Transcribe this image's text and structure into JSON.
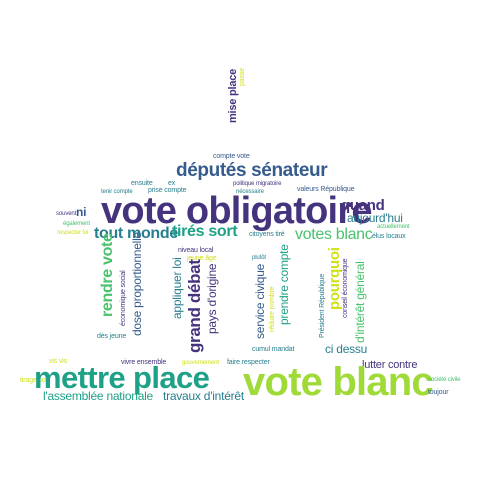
{
  "palette": {
    "dark_purple": "#46337e",
    "slate_blue": "#365c8d",
    "steel_blue": "#277f8e",
    "teal": "#1fa187",
    "green": "#4ac16d",
    "lime": "#a0da39",
    "yellow": "#d0e11c"
  },
  "words": [
    {
      "id": "mise-place",
      "text": "mise place",
      "weight": 4,
      "color": "#46337e"
    },
    {
      "id": "passe",
      "text": "passe",
      "weight": 1,
      "color": "#d0e11c"
    },
    {
      "id": "compte-vote",
      "text": "compte vote",
      "weight": 1,
      "color": "#365c8d"
    },
    {
      "id": "deputes-senateur",
      "text": "députés sénateur",
      "weight": 6,
      "color": "#365c8d"
    },
    {
      "id": "ensuite",
      "text": "ensuite",
      "weight": 1,
      "color": "#277f8e"
    },
    {
      "id": "ex",
      "text": "ex",
      "weight": 1,
      "color": "#277f8e"
    },
    {
      "id": "politique-migratoire",
      "text": "politique migratoire",
      "weight": 1,
      "color": "#46337e"
    },
    {
      "id": "tenir-compte",
      "text": "tenir compte",
      "weight": 1,
      "color": "#277f8e"
    },
    {
      "id": "prise-compte",
      "text": "prise compte",
      "weight": 1,
      "color": "#277f8e"
    },
    {
      "id": "necessaire",
      "text": "nécessaire",
      "weight": 1,
      "color": "#277f8e"
    },
    {
      "id": "valeurs-republique",
      "text": "valeurs République",
      "weight": 1,
      "color": "#365c8d"
    },
    {
      "id": "vote-obligatoire",
      "text": "vote obligatoire",
      "weight": 10,
      "color": "#46337e"
    },
    {
      "id": "quand",
      "text": "quand",
      "weight": 4,
      "color": "#46337e"
    },
    {
      "id": "souvent",
      "text": "souvent",
      "weight": 1,
      "color": "#46337e"
    },
    {
      "id": "ni",
      "text": "ni",
      "weight": 3,
      "color": "#365c8d"
    },
    {
      "id": "egalement",
      "text": "également",
      "weight": 1,
      "color": "#4ac16d"
    },
    {
      "id": "aujourd-hui",
      "text": "aujourd'hui",
      "weight": 3,
      "color": "#277f8e"
    },
    {
      "id": "actuellement",
      "text": "actuellement",
      "weight": 1,
      "color": "#4ac16d"
    },
    {
      "id": "respecter-loi",
      "text": "respecter loi",
      "weight": 1,
      "color": "#d0e11c"
    },
    {
      "id": "tout-monde",
      "text": "tout monde",
      "weight": 4,
      "color": "#277f8e"
    },
    {
      "id": "tires-sort",
      "text": "tirés sort",
      "weight": 4,
      "color": "#1fa187"
    },
    {
      "id": "citoyens-tire",
      "text": "citoyens tiré",
      "weight": 1,
      "color": "#277f8e"
    },
    {
      "id": "votes-blanc",
      "text": "votes blanc",
      "weight": 4,
      "color": "#4ac16d"
    },
    {
      "id": "elus-locaux",
      "text": "élus locaux",
      "weight": 1,
      "color": "#277f8e"
    },
    {
      "id": "niveau-local",
      "text": "niveau local",
      "weight": 1,
      "color": "#46337e"
    },
    {
      "id": "jeune-age",
      "text": "jeune âge",
      "weight": 1,
      "color": "#d0e11c"
    },
    {
      "id": "plutot",
      "text": "plutôt",
      "weight": 1,
      "color": "#277f8e"
    },
    {
      "id": "rendre-vote",
      "text": "rendre vote",
      "weight": 4,
      "color": "#4ac16d"
    },
    {
      "id": "economique-social",
      "text": "économique social",
      "weight": 1,
      "color": "#46337e"
    },
    {
      "id": "dose-proportionnelle",
      "text": "dose proportionnelle",
      "weight": 3,
      "color": "#365c8d"
    },
    {
      "id": "appliquer-loi",
      "text": "appliquer loi",
      "weight": 3,
      "color": "#277f8e"
    },
    {
      "id": "grand-debat",
      "text": "grand débat",
      "weight": 5,
      "color": "#46337e"
    },
    {
      "id": "pays-d-origine",
      "text": "pays d'origine",
      "weight": 3,
      "color": "#46337e"
    },
    {
      "id": "service-civique",
      "text": "service civique",
      "weight": 3,
      "color": "#365c8d"
    },
    {
      "id": "reduire-nombre",
      "text": "réduire nombre",
      "weight": 1,
      "color": "#d0e11c"
    },
    {
      "id": "prendre-compte",
      "text": "prendre compte",
      "weight": 3,
      "color": "#1fa187"
    },
    {
      "id": "president-republique",
      "text": "Président République",
      "weight": 1,
      "color": "#277f8e"
    },
    {
      "id": "pourquoi",
      "text": "pourquoi",
      "weight": 4,
      "color": "#d0e11c"
    },
    {
      "id": "conseil-economique",
      "text": "conseil économique",
      "weight": 1,
      "color": "#46337e"
    },
    {
      "id": "d-interet-general",
      "text": "d'intérêt général",
      "weight": 3,
      "color": "#4ac16d"
    },
    {
      "id": "des-jeune",
      "text": "dès jeune",
      "weight": 1,
      "color": "#277f8e"
    },
    {
      "id": "cumul-mandat",
      "text": "cumul mandat",
      "weight": 1,
      "color": "#277f8e"
    },
    {
      "id": "ci-dessu",
      "text": "ci dessu",
      "weight": 3,
      "color": "#277f8e"
    },
    {
      "id": "vis-vis",
      "text": "vis vis",
      "weight": 1,
      "color": "#d0e11c"
    },
    {
      "id": "vivre-ensemble",
      "text": "vivre ensemble",
      "weight": 1,
      "color": "#46337e"
    },
    {
      "id": "gouvernement",
      "text": "gouvernement",
      "weight": 1,
      "color": "#d0e11c"
    },
    {
      "id": "faire-respecter",
      "text": "faire respecter",
      "weight": 1,
      "color": "#277f8e"
    },
    {
      "id": "lutter-contre",
      "text": "lutter contre",
      "weight": 3,
      "color": "#46337e"
    },
    {
      "id": "tirage-sort",
      "text": "tirage sort",
      "weight": 1,
      "color": "#d0e11c"
    },
    {
      "id": "mettre-place",
      "text": "mettre place",
      "weight": 9,
      "color": "#1fa187"
    },
    {
      "id": "vote-blanc",
      "text": "vote blanc",
      "weight": 10,
      "color": "#a0da39"
    },
    {
      "id": "societe-civile",
      "text": "société civile",
      "weight": 1,
      "color": "#4ac16d"
    },
    {
      "id": "l-assemblee-nationale",
      "text": "l'assemblée nationale",
      "weight": 3,
      "color": "#1fa187"
    },
    {
      "id": "travaux-d-interet",
      "text": "travaux d'intérêt",
      "weight": 3,
      "color": "#277f8e"
    },
    {
      "id": "toujour",
      "text": "toujour",
      "weight": 1,
      "color": "#365c8d"
    }
  ]
}
